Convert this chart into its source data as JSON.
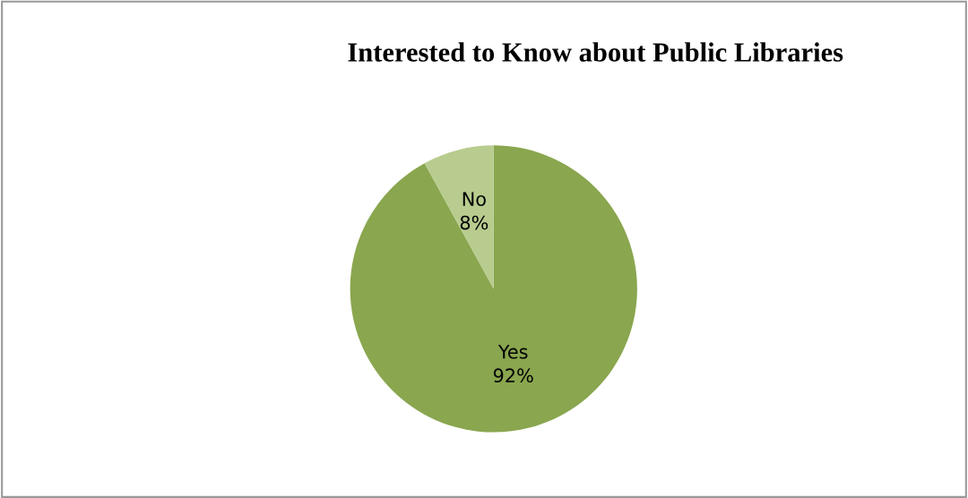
{
  "chart_data": {
    "type": "pie",
    "title": "Interested to Know about Public Libraries",
    "categories": [
      "Yes",
      "No"
    ],
    "values": [
      92,
      8
    ],
    "colors": [
      "#8aa64f",
      "#b8cc8f"
    ],
    "value_labels": [
      "92%",
      "8%"
    ],
    "legend": false
  }
}
